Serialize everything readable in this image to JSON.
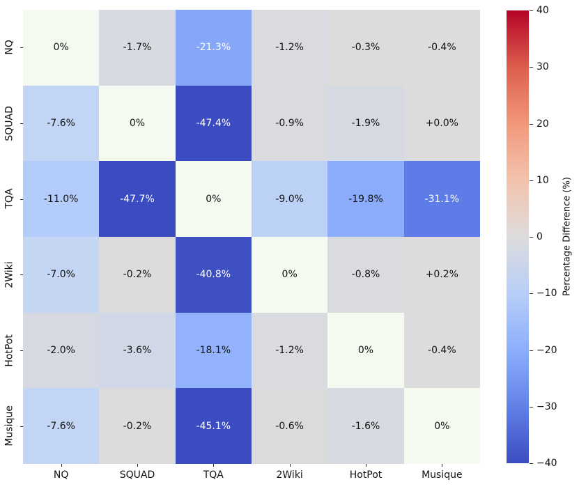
{
  "figure": {
    "background": "#ffffff",
    "annotation_text_color": "#111111",
    "annotation_text_color_on_dark": "#ffffff"
  },
  "chart_data": {
    "type": "heatmap",
    "title": "",
    "xlabel": "",
    "ylabel": "",
    "x_categories": [
      "NQ",
      "SQUAD",
      "TQA",
      "2Wiki",
      "HotPot",
      "Musique"
    ],
    "y_categories": [
      "NQ",
      "SQUAD",
      "TQA",
      "2Wiki",
      "HotPot",
      "Musique"
    ],
    "values": [
      [
        0,
        -1.7,
        -21.3,
        -1.2,
        -0.3,
        -0.4
      ],
      [
        -7.6,
        0,
        -47.4,
        -0.9,
        -1.9,
        0.0
      ],
      [
        -11.0,
        -47.7,
        0,
        -9.0,
        -19.8,
        -31.1
      ],
      [
        -7.0,
        -0.2,
        -40.8,
        0,
        -0.8,
        0.2
      ],
      [
        -2.0,
        -3.6,
        -18.1,
        -1.2,
        0,
        -0.4
      ],
      [
        -7.6,
        -0.2,
        -45.1,
        -0.6,
        -1.6,
        0
      ]
    ],
    "cell_labels": [
      [
        "0%",
        "-1.7%",
        "-21.3%",
        "-1.2%",
        "-0.3%",
        "-0.4%"
      ],
      [
        "-7.6%",
        "0%",
        "-47.4%",
        "-0.9%",
        "-1.9%",
        "+0.0%"
      ],
      [
        "-11.0%",
        "-47.7%",
        "0%",
        "-9.0%",
        "-19.8%",
        "-31.1%"
      ],
      [
        "-7.0%",
        "-0.2%",
        "-40.8%",
        "0%",
        "-0.8%",
        "+0.2%"
      ],
      [
        "-2.0%",
        "-3.6%",
        "-18.1%",
        "-1.2%",
        "0%",
        "-0.4%"
      ],
      [
        "-7.6%",
        "-0.2%",
        "-45.1%",
        "-0.6%",
        "-1.6%",
        "0%"
      ]
    ],
    "cell_colors": [
      [
        "#F5FAF0",
        "#D7DAE1",
        "#86A6F8",
        "#D9DBE0",
        "#DCDCDD",
        "#DCDCDD"
      ],
      [
        "#C3D5F5",
        "#F5FAF0",
        "#3B4CC0",
        "#DADBDF",
        "#D5D9E2",
        "#DDDCDC"
      ],
      [
        "#B3CCF9",
        "#3B4CC0",
        "#F5FAF0",
        "#BCD1F6",
        "#8BACFA",
        "#5D7CE7"
      ],
      [
        "#C5D6F4",
        "#DCDCDD",
        "#3E50C2",
        "#F5FAF0",
        "#DADBDE",
        "#DEDCDA"
      ],
      [
        "#D6D9E2",
        "#D0D8E7",
        "#92B2FB",
        "#D9DBE0",
        "#F5FAF0",
        "#DCDCDD"
      ],
      [
        "#C3D5F5",
        "#DCDCDD",
        "#3B4CC0",
        "#DBDBDE",
        "#D7DAE1",
        "#F5FAF0"
      ]
    ],
    "cell_text_colors": [
      [
        "#111111",
        "#111111",
        "#FFFFFF",
        "#111111",
        "#111111",
        "#111111"
      ],
      [
        "#111111",
        "#111111",
        "#FFFFFF",
        "#111111",
        "#111111",
        "#111111"
      ],
      [
        "#111111",
        "#FFFFFF",
        "#111111",
        "#111111",
        "#111111",
        "#FFFFFF"
      ],
      [
        "#111111",
        "#111111",
        "#FFFFFF",
        "#111111",
        "#111111",
        "#111111"
      ],
      [
        "#111111",
        "#111111",
        "#111111",
        "#111111",
        "#111111",
        "#111111"
      ],
      [
        "#111111",
        "#111111",
        "#FFFFFF",
        "#111111",
        "#111111",
        "#111111"
      ]
    ],
    "colorbar": {
      "label": "Percentage Difference (%)",
      "ticks": [
        "40",
        "30",
        "20",
        "10",
        "0",
        "−10",
        "−20",
        "−30",
        "−40"
      ],
      "vmin": -40,
      "vmax": 40,
      "colormap": "coolwarm",
      "gradient_stops": [
        {
          "pos": 0,
          "color": "#B40426"
        },
        {
          "pos": 12.5,
          "color": "#DC5E4D"
        },
        {
          "pos": 25,
          "color": "#F2987B"
        },
        {
          "pos": 37.5,
          "color": "#F3C3AD"
        },
        {
          "pos": 50,
          "color": "#DDDCDC"
        },
        {
          "pos": 62.5,
          "color": "#B8CEF8"
        },
        {
          "pos": 75,
          "color": "#8CAEFC"
        },
        {
          "pos": 87.5,
          "color": "#6181E8"
        },
        {
          "pos": 100,
          "color": "#3B4CC0"
        }
      ]
    },
    "layout": {
      "grid": "off",
      "legend": "none",
      "colorbar_position": "right"
    }
  }
}
